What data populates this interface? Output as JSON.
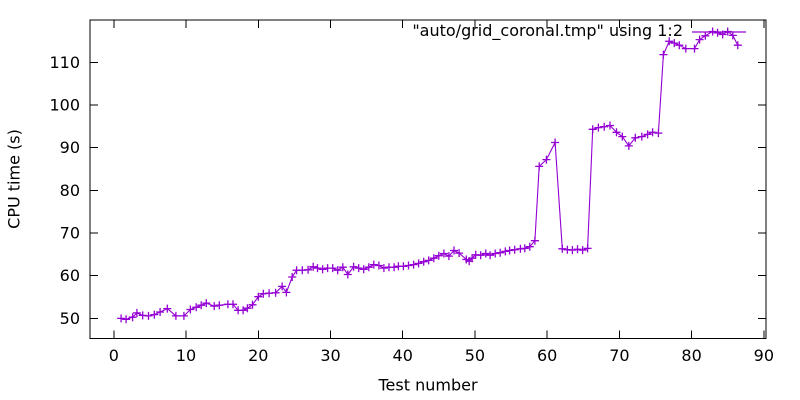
{
  "chart_data": {
    "type": "line",
    "style": "linespoints",
    "title": "",
    "xlabel": "Test number",
    "ylabel": "CPU time (s)",
    "legend": {
      "label": "\"auto/grid_coronal.tmp\" using 1:2",
      "position": "top-right-inside"
    },
    "xlim": [
      -3.3,
      90.3
    ],
    "ylim": [
      45.3,
      119.9
    ],
    "xticks": [
      0,
      10,
      20,
      30,
      40,
      50,
      60,
      70,
      80,
      90
    ],
    "yticks": [
      50,
      60,
      70,
      80,
      90,
      100,
      110
    ],
    "grid": false,
    "colors": {
      "series": "#9400D3",
      "axis": "#000000",
      "background": "#ffffff"
    },
    "series": [
      {
        "name": "\"auto/grid_coronal.tmp\" using 1:2",
        "marker": "plus",
        "color": "#9400D3",
        "points": [
          [
            1.0,
            50.0
          ],
          [
            1.7,
            49.8
          ],
          [
            2.6,
            50.3
          ],
          [
            3.2,
            51.3
          ],
          [
            4.0,
            50.7
          ],
          [
            4.8,
            50.6
          ],
          [
            5.6,
            50.9
          ],
          [
            6.4,
            51.5
          ],
          [
            7.4,
            52.3
          ],
          [
            8.6,
            50.6
          ],
          [
            9.7,
            50.6
          ],
          [
            10.6,
            52.1
          ],
          [
            11.4,
            52.6
          ],
          [
            12.1,
            53.1
          ],
          [
            12.8,
            53.6
          ],
          [
            13.9,
            52.9
          ],
          [
            14.6,
            53.1
          ],
          [
            15.8,
            53.3
          ],
          [
            16.5,
            53.3
          ],
          [
            17.2,
            51.9
          ],
          [
            17.9,
            51.9
          ],
          [
            18.5,
            52.4
          ],
          [
            19.2,
            53.2
          ],
          [
            20.0,
            55.1
          ],
          [
            20.7,
            55.8
          ],
          [
            21.5,
            55.9
          ],
          [
            22.4,
            56.0
          ],
          [
            23.3,
            57.5
          ],
          [
            23.9,
            56.1
          ],
          [
            24.7,
            59.7
          ],
          [
            25.3,
            61.3
          ],
          [
            26.1,
            61.3
          ],
          [
            26.9,
            61.4
          ],
          [
            27.6,
            62.1
          ],
          [
            28.2,
            61.8
          ],
          [
            28.9,
            61.5
          ],
          [
            29.6,
            61.8
          ],
          [
            30.3,
            61.8
          ],
          [
            31.0,
            61.3
          ],
          [
            31.7,
            62.0
          ],
          [
            32.4,
            60.3
          ],
          [
            33.2,
            62.1
          ],
          [
            33.9,
            61.8
          ],
          [
            34.6,
            61.5
          ],
          [
            35.3,
            62.0
          ],
          [
            36.0,
            62.6
          ],
          [
            36.7,
            62.4
          ],
          [
            37.4,
            61.8
          ],
          [
            38.1,
            62.0
          ],
          [
            38.8,
            62.0
          ],
          [
            39.4,
            62.2
          ],
          [
            40.1,
            62.2
          ],
          [
            40.8,
            62.4
          ],
          [
            41.5,
            62.6
          ],
          [
            42.2,
            62.9
          ],
          [
            42.9,
            63.3
          ],
          [
            43.6,
            63.6
          ],
          [
            44.3,
            64.1
          ],
          [
            45.0,
            64.7
          ],
          [
            45.7,
            65.2
          ],
          [
            46.4,
            64.6
          ],
          [
            47.1,
            65.9
          ],
          [
            47.8,
            65.3
          ],
          [
            48.8,
            63.8
          ],
          [
            49.2,
            63.4
          ],
          [
            49.6,
            64.1
          ],
          [
            50.1,
            64.9
          ],
          [
            50.8,
            64.8
          ],
          [
            51.5,
            65.2
          ],
          [
            52.1,
            64.8
          ],
          [
            52.8,
            65.2
          ],
          [
            53.5,
            65.4
          ],
          [
            54.2,
            65.7
          ],
          [
            54.8,
            65.9
          ],
          [
            55.5,
            66.1
          ],
          [
            56.3,
            66.3
          ],
          [
            56.9,
            66.4
          ],
          [
            57.6,
            66.8
          ],
          [
            58.3,
            68.2
          ],
          [
            58.9,
            85.6
          ],
          [
            59.9,
            87.2
          ],
          [
            61.1,
            91.2
          ],
          [
            62.1,
            66.3
          ],
          [
            62.8,
            66.1
          ],
          [
            63.5,
            66.0
          ],
          [
            64.2,
            66.2
          ],
          [
            64.9,
            66.0
          ],
          [
            65.6,
            66.4
          ],
          [
            66.3,
            94.3
          ],
          [
            67.1,
            94.7
          ],
          [
            67.9,
            94.9
          ],
          [
            68.7,
            95.2
          ],
          [
            69.6,
            93.6
          ],
          [
            70.4,
            92.6
          ],
          [
            71.3,
            90.4
          ],
          [
            72.2,
            92.3
          ],
          [
            73.1,
            92.6
          ],
          [
            73.9,
            93.1
          ],
          [
            74.6,
            93.6
          ],
          [
            75.4,
            93.4
          ],
          [
            76.1,
            111.8
          ],
          [
            76.9,
            114.9
          ],
          [
            77.6,
            114.5
          ],
          [
            78.3,
            114.0
          ],
          [
            79.2,
            113.2
          ],
          [
            80.4,
            113.2
          ],
          [
            81.1,
            115.3
          ],
          [
            81.9,
            116.2
          ],
          [
            82.9,
            117.2
          ],
          [
            83.6,
            116.9
          ],
          [
            84.3,
            116.5
          ],
          [
            85.0,
            117.2
          ],
          [
            85.7,
            116.3
          ],
          [
            86.4,
            114.0
          ]
        ]
      }
    ]
  }
}
